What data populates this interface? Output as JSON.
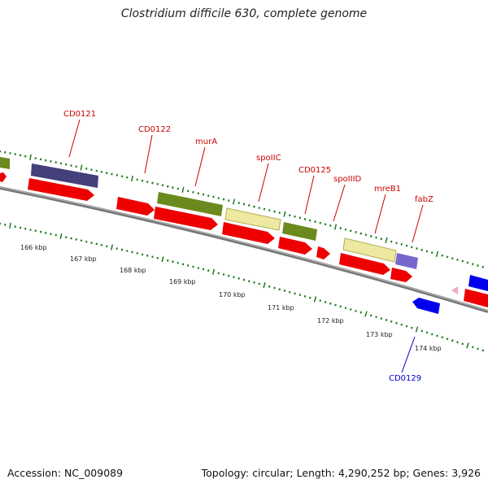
{
  "title": "Clostridium difficile 630, complete genome",
  "footer": {
    "accession": "Accession: NC_009089",
    "topology": "Topology: circular; Length: 4,290,252 bp; Genes: 3,926"
  },
  "colors": {
    "red_label": "#cc0000",
    "blue_label": "#0000cc",
    "tick_green": "#1f7a1f",
    "backbone": "#777777",
    "cds_red": "#ee0000",
    "navy": "#44407a",
    "olive": "#6b8a1e",
    "khaki": "#eee9a0",
    "blue": "#0000ee",
    "lavender": "#7766cc",
    "pink": "#f3a6c8"
  },
  "gene_labels": [
    {
      "name": "CD0121",
      "strand": "forward"
    },
    {
      "name": "CD0122",
      "strand": "forward"
    },
    {
      "name": "murA",
      "strand": "forward"
    },
    {
      "name": "spoIIC",
      "strand": "forward"
    },
    {
      "name": "CD0125",
      "strand": "forward"
    },
    {
      "name": "spoIIID",
      "strand": "forward"
    },
    {
      "name": "mreB1",
      "strand": "forward"
    },
    {
      "name": "fabZ",
      "strand": "forward"
    },
    {
      "name": "CD0129",
      "strand": "reverse"
    }
  ],
  "kbp_labels": [
    "166 kbp",
    "167 kbp",
    "168 kbp",
    "169 kbp",
    "170 kbp",
    "171 kbp",
    "172 kbp",
    "173 kbp",
    "174 kbp"
  ]
}
